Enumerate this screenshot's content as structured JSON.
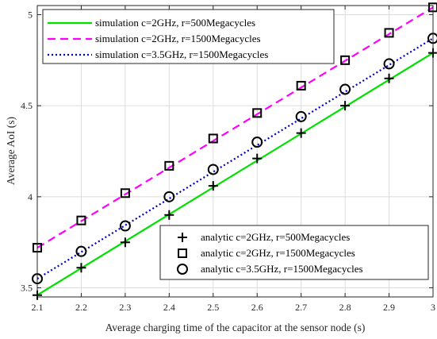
{
  "chart_data": {
    "type": "line",
    "xlabel": "Average charging time of the capacitor at the sensor node (s)",
    "ylabel": "Average AoI (s)",
    "xlim": [
      2.1,
      3.0
    ],
    "ylim": [
      3.45,
      5.05
    ],
    "x_ticks": [
      "2.1",
      "2.2",
      "2.3",
      "2.4",
      "2.5",
      "2.6",
      "2.7",
      "2.8",
      "2.9",
      "3"
    ],
    "y_ticks": [
      "3.5",
      "4",
      "4.5",
      "5"
    ],
    "grid": true,
    "legend_top": "top-left",
    "legend_bottom": "bottom-right",
    "simulation_series": [
      {
        "name": "simulation c=2GHz, r=500Megacycles",
        "color": "#00e000",
        "style": "solid",
        "x": [
          2.1,
          3.0
        ],
        "y": [
          3.46,
          4.79
        ]
      },
      {
        "name": "simulation c=2GHz, r=1500Megacycles",
        "color": "#ff00ff",
        "style": "dashed",
        "x": [
          2.1,
          3.0
        ],
        "y": [
          3.72,
          5.04
        ]
      },
      {
        "name": "simulation c=3.5GHz, r=1500Megacycles",
        "color": "#0000cc",
        "style": "dotted",
        "x": [
          2.1,
          3.0
        ],
        "y": [
          3.55,
          4.87
        ]
      }
    ],
    "analytic_series": [
      {
        "name": "analytic c=2GHz, r=500Megacycles",
        "marker": "plus",
        "x": [
          2.1,
          2.2,
          2.3,
          2.4,
          2.5,
          2.6,
          2.7,
          2.8,
          2.9,
          3.0
        ],
        "y": [
          3.46,
          3.61,
          3.75,
          3.9,
          4.06,
          4.21,
          4.35,
          4.5,
          4.65,
          4.79
        ]
      },
      {
        "name": "analytic c=2GHz, r=1500Megacycles",
        "marker": "square",
        "x": [
          2.1,
          2.2,
          2.3,
          2.4,
          2.5,
          2.6,
          2.7,
          2.8,
          2.9,
          3.0
        ],
        "y": [
          3.72,
          3.87,
          4.02,
          4.17,
          4.32,
          4.46,
          4.61,
          4.75,
          4.9,
          5.04
        ]
      },
      {
        "name": "analytic c=3.5GHz, r=1500Megacycles",
        "marker": "circle",
        "x": [
          2.1,
          2.2,
          2.3,
          2.4,
          2.5,
          2.6,
          2.7,
          2.8,
          2.9,
          3.0
        ],
        "y": [
          3.55,
          3.7,
          3.84,
          4.0,
          4.15,
          4.3,
          4.44,
          4.59,
          4.73,
          4.87
        ]
      }
    ]
  }
}
